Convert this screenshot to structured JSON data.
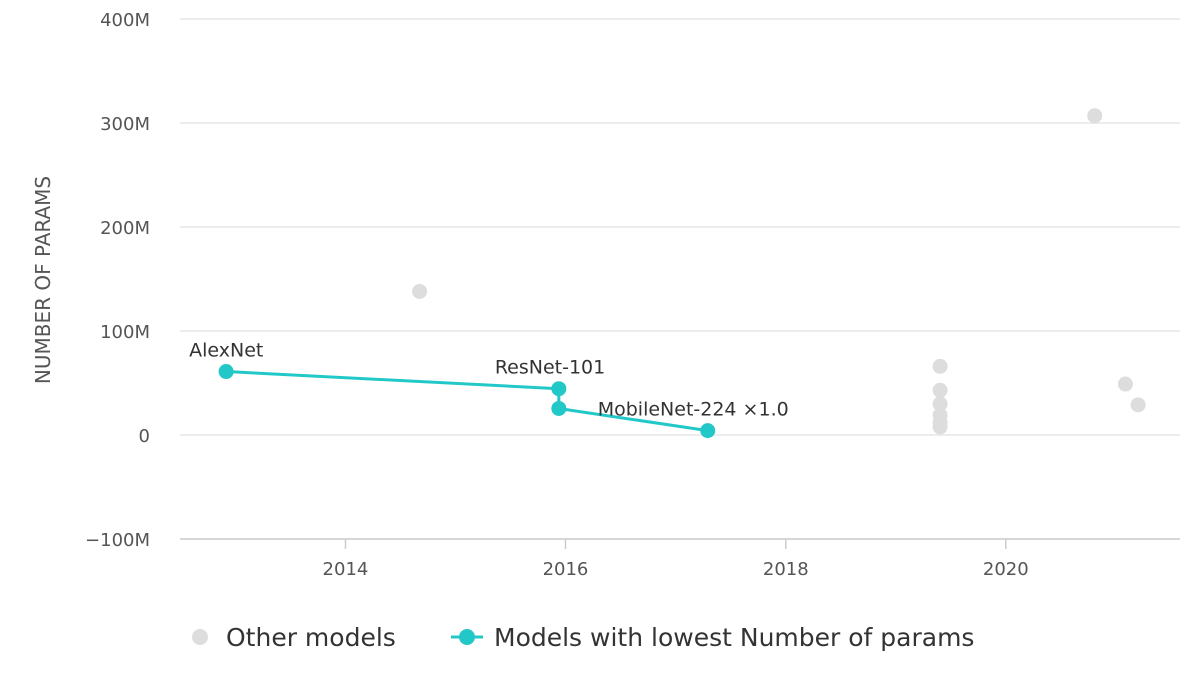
{
  "chart_data": {
    "type": "scatter",
    "title": "",
    "xlabel": "",
    "ylabel": "NUMBER OF PARAMS",
    "xlim": [
      "2012-07-01",
      "2021-08-01"
    ],
    "ylim": [
      -100000000,
      400000000
    ],
    "x_ticks": [
      "2014",
      "2016",
      "2018",
      "2020"
    ],
    "y_ticks": [
      "400M",
      "300M",
      "200M",
      "100M",
      "0",
      "−100M"
    ],
    "grid": "horizontal",
    "legend_position": "bottom",
    "series": [
      {
        "name": "Other models",
        "color": "#dddddd",
        "mode": "markers",
        "points": [
          {
            "x": "2014-09-04",
            "y": 138000000
          },
          {
            "x": "2019-05-28",
            "y": 66000000
          },
          {
            "x": "2019-05-28",
            "y": 43000000
          },
          {
            "x": "2019-05-28",
            "y": 30000000
          },
          {
            "x": "2019-05-28",
            "y": 19000000
          },
          {
            "x": "2019-05-28",
            "y": 12000000
          },
          {
            "x": "2019-05-28",
            "y": 7800000
          },
          {
            "x": "2020-10-22",
            "y": 307000000
          },
          {
            "x": "2021-02-01",
            "y": 49000000
          },
          {
            "x": "2021-03-15",
            "y": 29000000
          }
        ]
      },
      {
        "name": "Models with lowest Number of params",
        "color": "#22c8c8",
        "mode": "lines+markers",
        "points": [
          {
            "x": "2012-12-01",
            "y": 61000000,
            "label": "AlexNet"
          },
          {
            "x": "2015-12-10",
            "y": 44500000,
            "label": "ResNet-101"
          },
          {
            "x": "2015-12-10",
            "y": 25500000,
            "label": ""
          },
          {
            "x": "2017-04-17",
            "y": 4200000,
            "label": "MobileNet-224 ×1.0"
          }
        ]
      }
    ]
  }
}
